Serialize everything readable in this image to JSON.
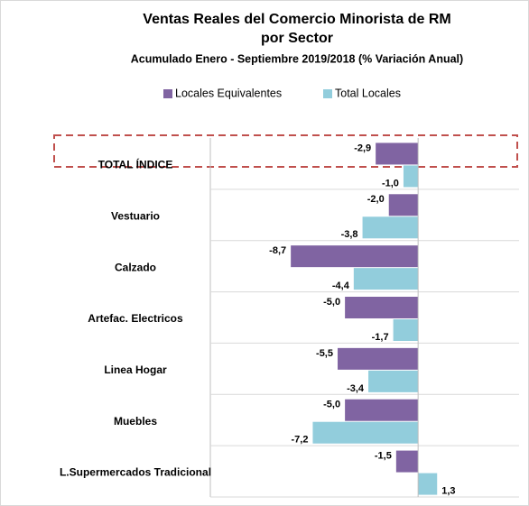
{
  "chart_data": {
    "type": "hbar",
    "title": [
      "Ventas Reales del Comercio Minorista de RM",
      "por Sector"
    ],
    "subtitle": "Acumulado Enero - Septiembre  2019/2018 (% Variación Anual)",
    "categories": [
      "TOTAL ÍNDICE",
      "Vestuario",
      "Calzado",
      "Artefac. Electricos",
      "Linea Hogar",
      "Muebles",
      "L.Supermercados Tradicional"
    ],
    "series": [
      {
        "name": "Locales Equivalentes",
        "color": "#8064a2",
        "values": [
          -2.9,
          -2.0,
          -8.7,
          -5.0,
          -5.5,
          -5.0,
          -1.5
        ],
        "value_labels": [
          "-2,9",
          "-2,0",
          "-8,7",
          "-5,0",
          "-5,5",
          "-5,0",
          "-1,5"
        ]
      },
      {
        "name": "Total Locales",
        "color": "#92cddc",
        "values": [
          -1.0,
          -3.8,
          -4.4,
          -1.7,
          -3.4,
          -7.2,
          1.3
        ],
        "value_labels": [
          "-1,0",
          "-3,8",
          "-4,4",
          "-1,7",
          "-3,4",
          "-7,2",
          "1,3"
        ]
      }
    ],
    "xlim": [
      -14.2,
      6.9
    ],
    "legend": "top"
  }
}
